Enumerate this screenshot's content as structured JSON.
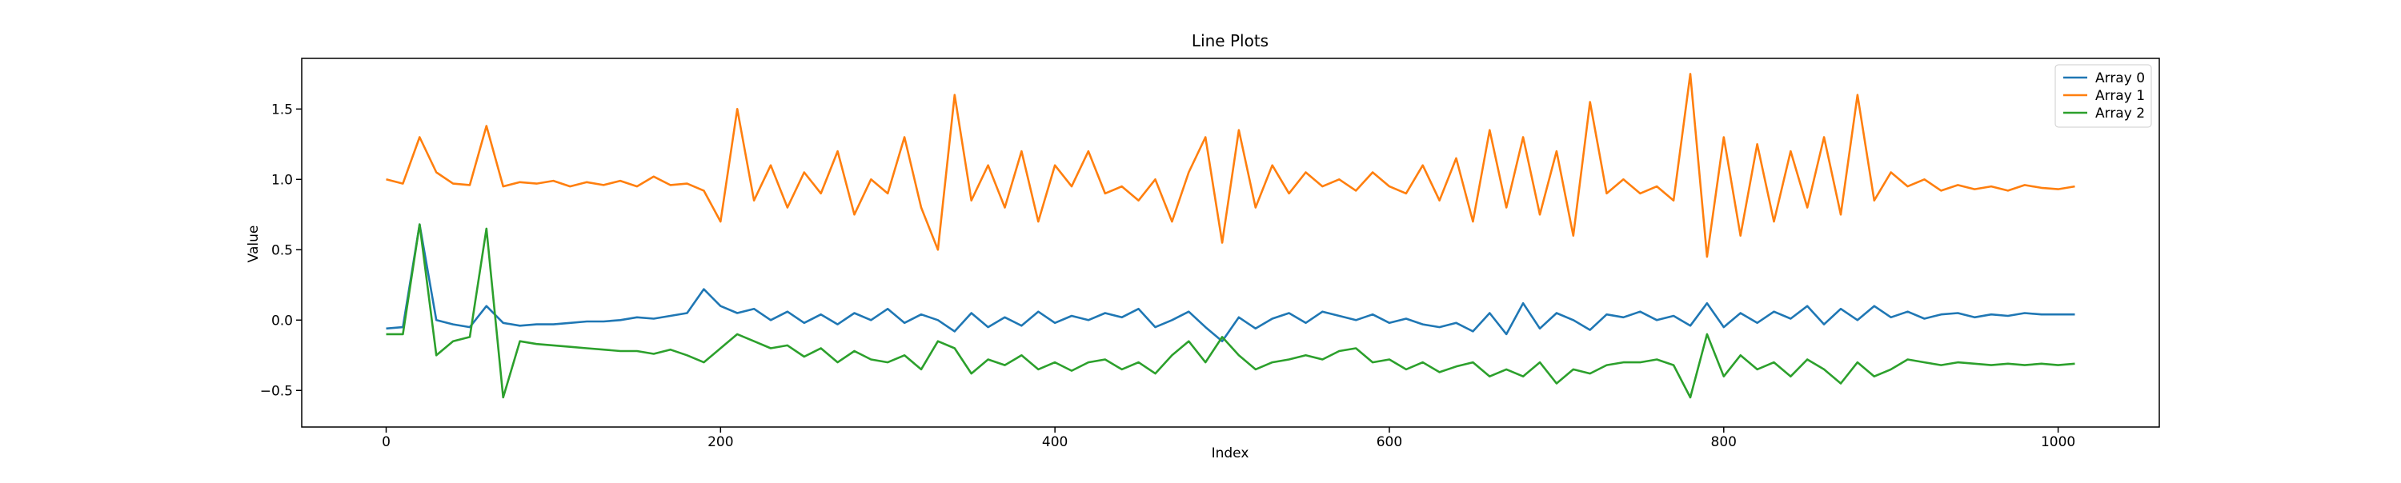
{
  "chart_data": {
    "type": "line",
    "title": "Line Plots",
    "x_label": "Index",
    "y_label": "Value",
    "x": [
      0,
      10,
      20,
      30,
      40,
      50,
      60,
      70,
      80,
      90,
      100,
      110,
      120,
      130,
      140,
      150,
      160,
      170,
      180,
      190,
      200,
      210,
      220,
      230,
      240,
      250,
      260,
      270,
      280,
      290,
      300,
      310,
      320,
      330,
      340,
      350,
      360,
      370,
      380,
      390,
      400,
      410,
      420,
      430,
      440,
      450,
      460,
      470,
      480,
      490,
      500,
      510,
      520,
      530,
      540,
      550,
      560,
      570,
      580,
      590,
      600,
      610,
      620,
      630,
      640,
      650,
      660,
      670,
      680,
      690,
      700,
      710,
      720,
      730,
      740,
      750,
      760,
      770,
      780,
      790,
      800,
      810,
      820,
      830,
      840,
      850,
      860,
      870,
      880,
      890,
      900,
      910,
      920,
      930,
      940,
      950,
      960,
      970,
      980,
      990,
      1000,
      1010
    ],
    "series": [
      {
        "name": "Array 0",
        "color": "#1f77b4",
        "values": [
          -0.06,
          -0.05,
          0.68,
          0.0,
          -0.03,
          -0.05,
          0.1,
          -0.02,
          -0.04,
          -0.03,
          -0.03,
          -0.02,
          -0.01,
          -0.01,
          0.0,
          0.02,
          0.01,
          0.03,
          0.05,
          0.22,
          0.1,
          0.05,
          0.08,
          0.0,
          0.06,
          -0.02,
          0.04,
          -0.03,
          0.05,
          0.0,
          0.08,
          -0.02,
          0.04,
          0.0,
          -0.08,
          0.05,
          -0.05,
          0.02,
          -0.04,
          0.06,
          -0.02,
          0.03,
          0.0,
          0.05,
          0.02,
          0.08,
          -0.05,
          0.0,
          0.06,
          -0.05,
          -0.15,
          0.02,
          -0.06,
          0.01,
          0.05,
          -0.02,
          0.06,
          0.03,
          0.0,
          0.04,
          -0.02,
          0.01,
          -0.03,
          -0.05,
          -0.02,
          -0.08,
          0.05,
          -0.1,
          0.12,
          -0.06,
          0.05,
          0.0,
          -0.07,
          0.04,
          0.02,
          0.06,
          0.0,
          0.03,
          -0.04,
          0.12,
          -0.05,
          0.05,
          -0.02,
          0.06,
          0.01,
          0.1,
          -0.03,
          0.08,
          0.0,
          0.1,
          0.02,
          0.06,
          0.01,
          0.04,
          0.05,
          0.02,
          0.04,
          0.03,
          0.05,
          0.04,
          0.04,
          0.04
        ]
      },
      {
        "name": "Array 1",
        "color": "#ff7f0e",
        "values": [
          1.0,
          0.97,
          1.3,
          1.05,
          0.97,
          0.96,
          1.38,
          0.95,
          0.98,
          0.97,
          0.99,
          0.95,
          0.98,
          0.96,
          0.99,
          0.95,
          1.02,
          0.96,
          0.97,
          0.92,
          0.7,
          1.5,
          0.85,
          1.1,
          0.8,
          1.05,
          0.9,
          1.2,
          0.75,
          1.0,
          0.9,
          1.3,
          0.8,
          0.5,
          1.6,
          0.85,
          1.1,
          0.8,
          1.2,
          0.7,
          1.1,
          0.95,
          1.2,
          0.9,
          0.95,
          0.85,
          1.0,
          0.7,
          1.05,
          1.3,
          0.55,
          1.35,
          0.8,
          1.1,
          0.9,
          1.05,
          0.95,
          1.0,
          0.92,
          1.05,
          0.95,
          0.9,
          1.1,
          0.85,
          1.15,
          0.7,
          1.35,
          0.8,
          1.3,
          0.75,
          1.2,
          0.6,
          1.55,
          0.9,
          1.0,
          0.9,
          0.95,
          0.85,
          1.75,
          0.45,
          1.3,
          0.6,
          1.25,
          0.7,
          1.2,
          0.8,
          1.3,
          0.75,
          1.6,
          0.85,
          1.05,
          0.95,
          1.0,
          0.92,
          0.96,
          0.93,
          0.95,
          0.92,
          0.96,
          0.94,
          0.93,
          0.95
        ]
      },
      {
        "name": "Array 2",
        "color": "#2ca02c",
        "values": [
          -0.1,
          -0.1,
          0.68,
          -0.25,
          -0.15,
          -0.12,
          0.65,
          -0.55,
          -0.15,
          -0.17,
          -0.18,
          -0.19,
          -0.2,
          -0.21,
          -0.22,
          -0.22,
          -0.24,
          -0.21,
          -0.25,
          -0.3,
          -0.2,
          -0.1,
          -0.15,
          -0.2,
          -0.18,
          -0.26,
          -0.2,
          -0.3,
          -0.22,
          -0.28,
          -0.3,
          -0.25,
          -0.35,
          -0.15,
          -0.2,
          -0.38,
          -0.28,
          -0.32,
          -0.25,
          -0.35,
          -0.3,
          -0.36,
          -0.3,
          -0.28,
          -0.35,
          -0.3,
          -0.38,
          -0.25,
          -0.15,
          -0.3,
          -0.12,
          -0.25,
          -0.35,
          -0.3,
          -0.28,
          -0.25,
          -0.28,
          -0.22,
          -0.2,
          -0.3,
          -0.28,
          -0.35,
          -0.3,
          -0.37,
          -0.33,
          -0.3,
          -0.4,
          -0.35,
          -0.4,
          -0.3,
          -0.45,
          -0.35,
          -0.38,
          -0.32,
          -0.3,
          -0.3,
          -0.28,
          -0.32,
          -0.55,
          -0.1,
          -0.4,
          -0.25,
          -0.35,
          -0.3,
          -0.4,
          -0.28,
          -0.35,
          -0.45,
          -0.3,
          -0.4,
          -0.35,
          -0.28,
          -0.3,
          -0.32,
          -0.3,
          -0.31,
          -0.32,
          -0.31,
          -0.32,
          -0.31,
          -0.32,
          -0.31
        ]
      }
    ],
    "xlim": [
      -50.5,
      1060.5
    ],
    "ylim": [
      -0.76,
      1.86
    ],
    "xticks": [
      0,
      200,
      400,
      600,
      800,
      1000
    ],
    "yticks": [
      {
        "value": -0.5,
        "label": "−0.5"
      },
      {
        "value": 0,
        "label": "0.0"
      },
      0.5,
      {
        "value": 1,
        "label": "1.0"
      },
      1.5
    ],
    "legend": "upper right"
  }
}
